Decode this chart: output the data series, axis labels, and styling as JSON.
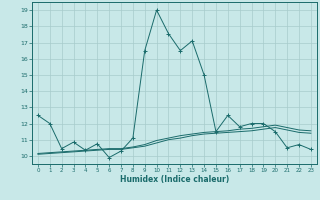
{
  "xlabel": "Humidex (Indice chaleur)",
  "xlim": [
    -0.5,
    23.5
  ],
  "ylim": [
    9.5,
    19.5
  ],
  "yticks": [
    10,
    11,
    12,
    13,
    14,
    15,
    16,
    17,
    18,
    19
  ],
  "xticks": [
    0,
    1,
    2,
    3,
    4,
    5,
    6,
    7,
    8,
    9,
    10,
    11,
    12,
    13,
    14,
    15,
    16,
    17,
    18,
    19,
    20,
    21,
    22,
    23
  ],
  "bg_color": "#c8e8e8",
  "grid_color": "#a8cccc",
  "line_color": "#1a6b6b",
  "line1_x": [
    0,
    1,
    2,
    3,
    4,
    5,
    6,
    7,
    8,
    9,
    10,
    11,
    12,
    13,
    14,
    15,
    16,
    17,
    18,
    19,
    20,
    21,
    22,
    23
  ],
  "line1_y": [
    12.5,
    12.0,
    10.45,
    10.85,
    10.35,
    10.75,
    9.9,
    10.3,
    11.1,
    16.5,
    19.0,
    17.55,
    16.5,
    17.1,
    15.0,
    11.5,
    12.5,
    11.8,
    12.0,
    12.0,
    11.5,
    10.5,
    10.7,
    10.4
  ],
  "line2_x": [
    0,
    1,
    2,
    3,
    4,
    5,
    6,
    7,
    8,
    9,
    10,
    11,
    12,
    13,
    14,
    15,
    16,
    17,
    18,
    19,
    20,
    21,
    22,
    23
  ],
  "line2_y": [
    10.15,
    10.2,
    10.25,
    10.3,
    10.35,
    10.4,
    10.45,
    10.45,
    10.55,
    10.7,
    10.95,
    11.1,
    11.25,
    11.35,
    11.45,
    11.5,
    11.55,
    11.65,
    11.7,
    11.8,
    11.9,
    11.75,
    11.6,
    11.55
  ],
  "line3_x": [
    0,
    1,
    2,
    3,
    4,
    5,
    6,
    7,
    8,
    9,
    10,
    11,
    12,
    13,
    14,
    15,
    16,
    17,
    18,
    19,
    20,
    21,
    22,
    23
  ],
  "line3_y": [
    10.1,
    10.15,
    10.2,
    10.25,
    10.3,
    10.35,
    10.4,
    10.4,
    10.5,
    10.6,
    10.8,
    11.0,
    11.1,
    11.25,
    11.35,
    11.4,
    11.45,
    11.5,
    11.55,
    11.65,
    11.75,
    11.6,
    11.45,
    11.4
  ]
}
